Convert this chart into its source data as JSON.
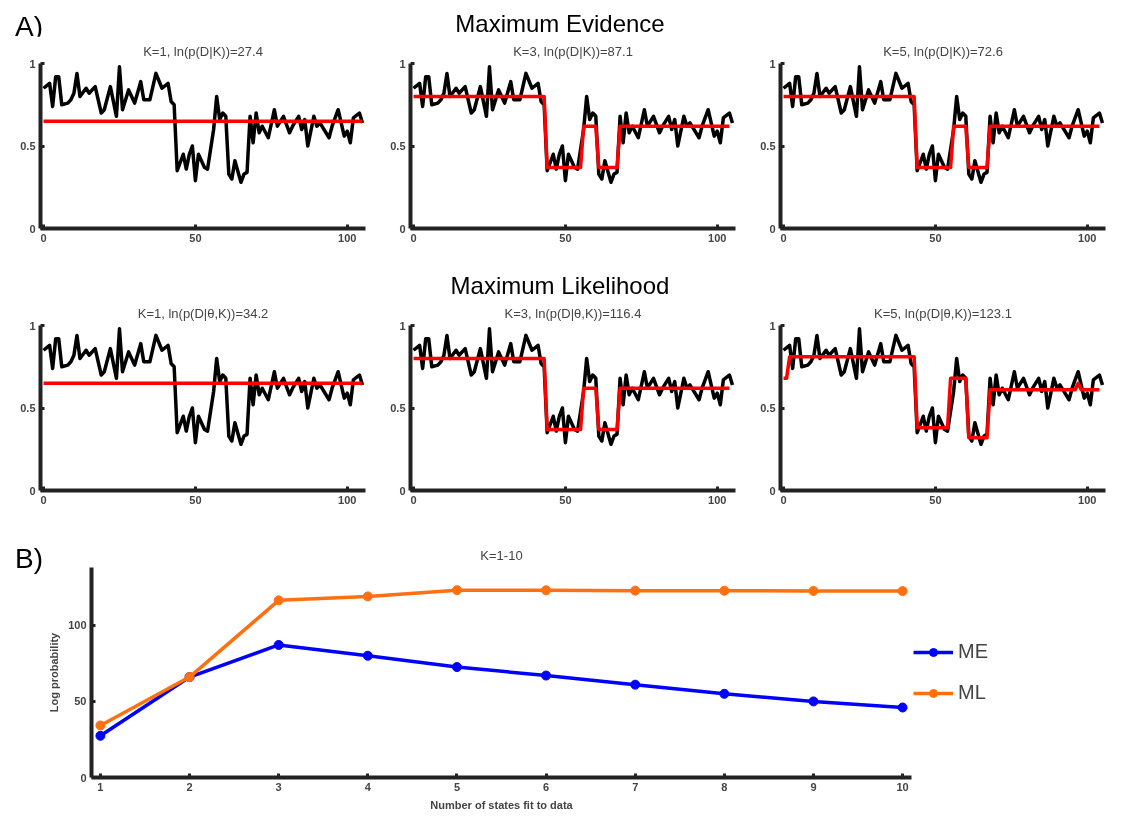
{
  "chart_data": [
    {
      "type": "line",
      "title": "K=1, ln(p(D|K))=27.4",
      "annotations": [
        "A)",
        "Maximum Evidence"
      ],
      "xlim": [
        -1,
        106
      ],
      "ylim": [
        0,
        1
      ],
      "xticks": [
        0,
        50,
        100
      ],
      "yticks": [
        0,
        0.5,
        1
      ],
      "grid": false,
      "series": [
        {
          "color": "#000000",
          "x": [
            0,
            2,
            3,
            4,
            5,
            6,
            8,
            9,
            10,
            11,
            12,
            14,
            15,
            17,
            19,
            20,
            22,
            24,
            25,
            26,
            28,
            30,
            32,
            33,
            35,
            37,
            39,
            41,
            42,
            43,
            44,
            46,
            47,
            48,
            49,
            50,
            51,
            53,
            54,
            56,
            57,
            58,
            59,
            60,
            61,
            62,
            63,
            65,
            66,
            67,
            68,
            69,
            70,
            71,
            72,
            74,
            76,
            77,
            79,
            81,
            82,
            84,
            85,
            86,
            87,
            89,
            90,
            91,
            94,
            95,
            97,
            99,
            100,
            101,
            102,
            104,
            105
          ],
          "values": [
            0.85,
            0.88,
            0.74,
            0.92,
            0.92,
            0.75,
            0.76,
            0.78,
            0.82,
            0.94,
            0.8,
            0.85,
            0.82,
            0.86,
            0.7,
            0.72,
            0.86,
            0.68,
            0.98,
            0.72,
            0.84,
            0.76,
            0.89,
            0.78,
            0.78,
            0.94,
            0.85,
            0.88,
            0.77,
            0.75,
            0.35,
            0.45,
            0.36,
            0.45,
            0.5,
            0.29,
            0.45,
            0.37,
            0.36,
            0.6,
            0.8,
            0.66,
            0.7,
            0.68,
            0.33,
            0.3,
            0.41,
            0.28,
            0.33,
            0.34,
            0.68,
            0.52,
            0.7,
            0.58,
            0.62,
            0.55,
            0.72,
            0.62,
            0.68,
            0.58,
            0.62,
            0.68,
            0.6,
            0.66,
            0.5,
            0.68,
            0.62,
            0.64,
            0.55,
            0.62,
            0.72,
            0.56,
            0.59,
            0.52,
            0.67,
            0.7,
            0.64
          ]
        },
        {
          "color": "#ff0000",
          "x": [
            0,
            105
          ],
          "values": [
            0.65,
            0.65
          ]
        }
      ]
    },
    {
      "type": "line",
      "title": "K=3, ln(p(D|K))=87.1",
      "xlim": [
        -1,
        106
      ],
      "ylim": [
        0,
        1
      ],
      "xticks": [
        0,
        50,
        100
      ],
      "yticks": [
        0,
        0.5,
        1
      ],
      "grid": false,
      "series": [
        {
          "color": "#000000",
          "x": [
            0,
            2,
            3,
            4,
            5,
            6,
            8,
            9,
            10,
            11,
            12,
            14,
            15,
            17,
            19,
            20,
            22,
            24,
            25,
            26,
            28,
            30,
            32,
            33,
            35,
            37,
            39,
            41,
            42,
            43,
            44,
            46,
            47,
            48,
            49,
            50,
            51,
            53,
            54,
            56,
            57,
            58,
            59,
            60,
            61,
            62,
            63,
            65,
            66,
            67,
            68,
            69,
            70,
            71,
            72,
            74,
            76,
            77,
            79,
            81,
            82,
            84,
            85,
            86,
            87,
            89,
            90,
            91,
            94,
            95,
            97,
            99,
            100,
            101,
            102,
            104,
            105
          ],
          "values": [
            0.85,
            0.88,
            0.74,
            0.92,
            0.92,
            0.75,
            0.76,
            0.78,
            0.82,
            0.94,
            0.8,
            0.85,
            0.82,
            0.86,
            0.7,
            0.72,
            0.86,
            0.68,
            0.98,
            0.72,
            0.84,
            0.76,
            0.89,
            0.78,
            0.78,
            0.94,
            0.85,
            0.88,
            0.77,
            0.75,
            0.35,
            0.45,
            0.36,
            0.45,
            0.5,
            0.29,
            0.45,
            0.37,
            0.36,
            0.6,
            0.8,
            0.66,
            0.7,
            0.68,
            0.33,
            0.3,
            0.41,
            0.28,
            0.33,
            0.34,
            0.68,
            0.52,
            0.7,
            0.58,
            0.62,
            0.55,
            0.72,
            0.62,
            0.68,
            0.58,
            0.62,
            0.68,
            0.6,
            0.66,
            0.5,
            0.68,
            0.62,
            0.64,
            0.55,
            0.62,
            0.72,
            0.56,
            0.59,
            0.52,
            0.67,
            0.7,
            0.64
          ]
        },
        {
          "color": "#ff0000",
          "x": [
            0,
            43,
            44,
            55,
            56,
            60,
            61,
            67,
            68,
            104
          ],
          "values": [
            0.8,
            0.8,
            0.37,
            0.37,
            0.62,
            0.62,
            0.37,
            0.37,
            0.62,
            0.62
          ]
        }
      ]
    },
    {
      "type": "line",
      "title": "K=5, ln(p(D|K))=72.6",
      "xlim": [
        -1,
        106
      ],
      "ylim": [
        0,
        1
      ],
      "xticks": [
        0,
        50,
        100
      ],
      "yticks": [
        0,
        0.5,
        1
      ],
      "grid": false,
      "series": [
        {
          "color": "#000000",
          "x": [
            0,
            2,
            3,
            4,
            5,
            6,
            8,
            9,
            10,
            11,
            12,
            14,
            15,
            17,
            19,
            20,
            22,
            24,
            25,
            26,
            28,
            30,
            32,
            33,
            35,
            37,
            39,
            41,
            42,
            43,
            44,
            46,
            47,
            48,
            49,
            50,
            51,
            53,
            54,
            56,
            57,
            58,
            59,
            60,
            61,
            62,
            63,
            65,
            66,
            67,
            68,
            69,
            70,
            71,
            72,
            74,
            76,
            77,
            79,
            81,
            82,
            84,
            85,
            86,
            87,
            89,
            90,
            91,
            94,
            95,
            97,
            99,
            100,
            101,
            102,
            104,
            105
          ],
          "values": [
            0.85,
            0.88,
            0.74,
            0.92,
            0.92,
            0.75,
            0.76,
            0.78,
            0.82,
            0.94,
            0.8,
            0.85,
            0.82,
            0.86,
            0.7,
            0.72,
            0.86,
            0.68,
            0.98,
            0.72,
            0.84,
            0.76,
            0.89,
            0.78,
            0.78,
            0.94,
            0.85,
            0.88,
            0.77,
            0.75,
            0.35,
            0.45,
            0.36,
            0.45,
            0.5,
            0.29,
            0.45,
            0.37,
            0.36,
            0.6,
            0.8,
            0.66,
            0.7,
            0.68,
            0.33,
            0.3,
            0.41,
            0.28,
            0.33,
            0.34,
            0.68,
            0.52,
            0.7,
            0.58,
            0.62,
            0.55,
            0.72,
            0.62,
            0.68,
            0.58,
            0.62,
            0.68,
            0.6,
            0.66,
            0.5,
            0.68,
            0.62,
            0.64,
            0.55,
            0.62,
            0.72,
            0.56,
            0.59,
            0.52,
            0.67,
            0.7,
            0.64
          ]
        },
        {
          "color": "#ff0000",
          "x": [
            0,
            43,
            44,
            55,
            56,
            60,
            61,
            67,
            68,
            104
          ],
          "values": [
            0.8,
            0.8,
            0.37,
            0.37,
            0.62,
            0.62,
            0.37,
            0.37,
            0.62,
            0.62
          ]
        }
      ]
    },
    {
      "type": "line",
      "title": "K=1, ln(p(D|θ,K))=34.2",
      "annotations": [
        "Maximum Likelihood"
      ],
      "xlim": [
        -1,
        106
      ],
      "ylim": [
        0,
        1
      ],
      "xticks": [
        0,
        50,
        100
      ],
      "yticks": [
        0,
        0.5,
        1
      ],
      "grid": false,
      "series": [
        {
          "color": "#000000",
          "x": [
            0,
            2,
            3,
            4,
            5,
            6,
            8,
            9,
            10,
            11,
            12,
            14,
            15,
            17,
            19,
            20,
            22,
            24,
            25,
            26,
            28,
            30,
            32,
            33,
            35,
            37,
            39,
            41,
            42,
            43,
            44,
            46,
            47,
            48,
            49,
            50,
            51,
            53,
            54,
            56,
            57,
            58,
            59,
            60,
            61,
            62,
            63,
            65,
            66,
            67,
            68,
            69,
            70,
            71,
            72,
            74,
            76,
            77,
            79,
            81,
            82,
            84,
            85,
            86,
            87,
            89,
            90,
            91,
            94,
            95,
            97,
            99,
            100,
            101,
            102,
            104,
            105
          ],
          "values": [
            0.85,
            0.88,
            0.74,
            0.92,
            0.92,
            0.75,
            0.76,
            0.78,
            0.82,
            0.94,
            0.8,
            0.85,
            0.82,
            0.86,
            0.7,
            0.72,
            0.86,
            0.68,
            0.98,
            0.72,
            0.84,
            0.76,
            0.89,
            0.78,
            0.78,
            0.94,
            0.85,
            0.88,
            0.77,
            0.75,
            0.35,
            0.45,
            0.36,
            0.45,
            0.5,
            0.29,
            0.45,
            0.37,
            0.36,
            0.6,
            0.8,
            0.66,
            0.7,
            0.68,
            0.33,
            0.3,
            0.41,
            0.28,
            0.33,
            0.34,
            0.68,
            0.52,
            0.7,
            0.58,
            0.62,
            0.55,
            0.72,
            0.62,
            0.68,
            0.58,
            0.62,
            0.68,
            0.6,
            0.66,
            0.5,
            0.68,
            0.62,
            0.64,
            0.55,
            0.62,
            0.72,
            0.56,
            0.59,
            0.52,
            0.67,
            0.7,
            0.64
          ]
        },
        {
          "color": "#ff0000",
          "x": [
            0,
            105
          ],
          "values": [
            0.65,
            0.65
          ]
        }
      ]
    },
    {
      "type": "line",
      "title": "K=3, ln(p(D|θ,K))=116.4",
      "xlim": [
        -1,
        106
      ],
      "ylim": [
        0,
        1
      ],
      "xticks": [
        0,
        50,
        100
      ],
      "yticks": [
        0,
        0.5,
        1
      ],
      "grid": false,
      "series": [
        {
          "color": "#000000",
          "x": [
            0,
            2,
            3,
            4,
            5,
            6,
            8,
            9,
            10,
            11,
            12,
            14,
            15,
            17,
            19,
            20,
            22,
            24,
            25,
            26,
            28,
            30,
            32,
            33,
            35,
            37,
            39,
            41,
            42,
            43,
            44,
            46,
            47,
            48,
            49,
            50,
            51,
            53,
            54,
            56,
            57,
            58,
            59,
            60,
            61,
            62,
            63,
            65,
            66,
            67,
            68,
            69,
            70,
            71,
            72,
            74,
            76,
            77,
            79,
            81,
            82,
            84,
            85,
            86,
            87,
            89,
            90,
            91,
            94,
            95,
            97,
            99,
            100,
            101,
            102,
            104,
            105
          ],
          "values": [
            0.85,
            0.88,
            0.74,
            0.92,
            0.92,
            0.75,
            0.76,
            0.78,
            0.82,
            0.94,
            0.8,
            0.85,
            0.82,
            0.86,
            0.7,
            0.72,
            0.86,
            0.68,
            0.98,
            0.72,
            0.84,
            0.76,
            0.89,
            0.78,
            0.78,
            0.94,
            0.85,
            0.88,
            0.77,
            0.75,
            0.35,
            0.45,
            0.36,
            0.45,
            0.5,
            0.29,
            0.45,
            0.37,
            0.36,
            0.6,
            0.8,
            0.66,
            0.7,
            0.68,
            0.33,
            0.3,
            0.41,
            0.28,
            0.33,
            0.34,
            0.68,
            0.52,
            0.7,
            0.58,
            0.62,
            0.55,
            0.72,
            0.62,
            0.68,
            0.58,
            0.62,
            0.68,
            0.6,
            0.66,
            0.5,
            0.68,
            0.62,
            0.64,
            0.55,
            0.62,
            0.72,
            0.56,
            0.59,
            0.52,
            0.67,
            0.7,
            0.64
          ]
        },
        {
          "color": "#ff0000",
          "x": [
            0,
            43,
            44,
            55,
            56,
            60,
            61,
            67,
            68,
            104
          ],
          "values": [
            0.8,
            0.8,
            0.37,
            0.37,
            0.62,
            0.62,
            0.37,
            0.37,
            0.62,
            0.62
          ]
        }
      ]
    },
    {
      "type": "line",
      "title": "K=5, ln(p(D|θ,K))=123.1",
      "xlim": [
        -1,
        106
      ],
      "ylim": [
        0,
        1
      ],
      "xticks": [
        0,
        50,
        100
      ],
      "yticks": [
        0,
        0.5,
        1
      ],
      "grid": false,
      "series": [
        {
          "color": "#000000",
          "x": [
            0,
            2,
            3,
            4,
            5,
            6,
            8,
            9,
            10,
            11,
            12,
            14,
            15,
            17,
            19,
            20,
            22,
            24,
            25,
            26,
            28,
            30,
            32,
            33,
            35,
            37,
            39,
            41,
            42,
            43,
            44,
            46,
            47,
            48,
            49,
            50,
            51,
            53,
            54,
            56,
            57,
            58,
            59,
            60,
            61,
            62,
            63,
            65,
            66,
            67,
            68,
            69,
            70,
            71,
            72,
            74,
            76,
            77,
            79,
            81,
            82,
            84,
            85,
            86,
            87,
            89,
            90,
            91,
            94,
            95,
            97,
            99,
            100,
            101,
            102,
            104,
            105
          ],
          "values": [
            0.85,
            0.88,
            0.74,
            0.92,
            0.92,
            0.75,
            0.76,
            0.78,
            0.82,
            0.94,
            0.8,
            0.85,
            0.82,
            0.86,
            0.7,
            0.72,
            0.86,
            0.68,
            0.98,
            0.72,
            0.84,
            0.76,
            0.89,
            0.78,
            0.78,
            0.94,
            0.85,
            0.88,
            0.77,
            0.75,
            0.35,
            0.45,
            0.36,
            0.45,
            0.5,
            0.29,
            0.45,
            0.37,
            0.36,
            0.6,
            0.8,
            0.66,
            0.7,
            0.68,
            0.33,
            0.3,
            0.41,
            0.28,
            0.33,
            0.34,
            0.68,
            0.52,
            0.7,
            0.58,
            0.62,
            0.55,
            0.72,
            0.62,
            0.68,
            0.58,
            0.62,
            0.68,
            0.6,
            0.66,
            0.5,
            0.68,
            0.62,
            0.64,
            0.55,
            0.62,
            0.72,
            0.56,
            0.59,
            0.52,
            0.67,
            0.7,
            0.64
          ]
        },
        {
          "color": "#ff0000",
          "x": [
            0,
            1,
            2,
            43,
            44,
            54,
            55,
            60,
            61,
            67,
            68,
            96,
            97,
            98,
            104
          ],
          "values": [
            0.68,
            0.68,
            0.81,
            0.81,
            0.38,
            0.38,
            0.68,
            0.68,
            0.32,
            0.32,
            0.61,
            0.61,
            0.65,
            0.61,
            0.61
          ]
        }
      ]
    },
    {
      "type": "line",
      "title": "K=1-10",
      "annotations": [
        "B)"
      ],
      "xlabel": "Number of states fit to data",
      "ylabel": "Log probability",
      "xlim": [
        0.9,
        10.1
      ],
      "ylim": [
        0,
        138
      ],
      "xticks": [
        1,
        2,
        3,
        4,
        5,
        6,
        7,
        8,
        9,
        10
      ],
      "yticks": [
        0,
        50,
        100
      ],
      "grid": false,
      "marker": "circle",
      "legend": "right",
      "x": [
        1,
        2,
        3,
        4,
        5,
        6,
        7,
        8,
        9,
        10
      ],
      "series": [
        {
          "name": "ME",
          "color": "#0000ff",
          "values": [
            27.4,
            66,
            87.1,
            80,
            72.6,
            67,
            61,
            55,
            50,
            46
          ]
        },
        {
          "name": "ML",
          "color": "#ff7010",
          "values": [
            34.2,
            66,
            116.4,
            119,
            123.1,
            123,
            122.8,
            122.7,
            122.6,
            122.5
          ]
        }
      ]
    }
  ]
}
